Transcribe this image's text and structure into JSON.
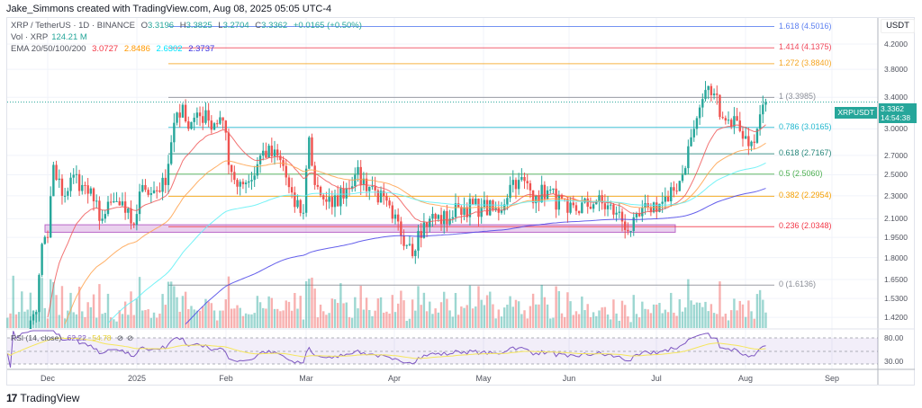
{
  "header": {
    "credit": "Jake_Simmons created with TradingView.com, Aug 08, 2025 05:05 UTC-4"
  },
  "legend": {
    "symbol": "XRP / TetherUS · 1D · BINANCE",
    "o_label": "O",
    "open": "3.3196",
    "h_label": "H",
    "high": "3.3825",
    "l_label": "L",
    "low": "3.2704",
    "c_label": "C",
    "close": "3.3362",
    "change": "+0.0165 (+0.50%)",
    "vol_label": "Vol · XRP",
    "vol_value": "124.21 M",
    "ema_label": "EMA 20/50/100/200",
    "ema20": "3.0727",
    "ema50": "2.8486",
    "ema100": "2.6302",
    "ema200": "2.3737",
    "rsi_label": "RSI (14, close)",
    "rsi_value": "62.22",
    "rsi_ma": "54.78"
  },
  "price_axis": {
    "currency": "USDT",
    "labels": [
      "4.2000",
      "3.8000",
      "3.4000",
      "3.0000",
      "2.7000",
      "2.5000",
      "2.3000",
      "2.1000",
      "1.9500",
      "1.8000",
      "1.6500",
      "1.5300",
      "1.4200"
    ],
    "rsi_labels": [
      "80.00",
      "30.00"
    ]
  },
  "price_tag": {
    "symbol": "XRPUSDT",
    "price": "3.3362",
    "countdown": "14:54:38"
  },
  "time_axis": [
    "Dec",
    "2025",
    "Feb",
    "Mar",
    "Apr",
    "May",
    "Jun",
    "Jul",
    "Aug",
    "Sep"
  ],
  "fib_levels": [
    {
      "label": "1.618 (4.5016)",
      "price": 4.5016,
      "color": "#5b7ff0"
    },
    {
      "label": "1.414 (4.1375)",
      "price": 4.1375,
      "color": "#f0475a"
    },
    {
      "label": "1.272 (3.8840)",
      "price": 3.884,
      "color": "#f5a623"
    },
    {
      "label": "1 (3.3985)",
      "price": 3.3985,
      "color": "#8a8d96"
    },
    {
      "label": "0.786 (3.0165)",
      "price": 3.0165,
      "color": "#22b8cf"
    },
    {
      "label": "0.618 (2.7167)",
      "price": 2.7167,
      "color": "#26867a"
    },
    {
      "label": "0.5 (2.5060)",
      "price": 2.506,
      "color": "#4caf50"
    },
    {
      "label": "0.382 (2.2954)",
      "price": 2.2954,
      "color": "#f59f00"
    },
    {
      "label": "0.236 (2.0348)",
      "price": 2.0348,
      "color": "#f23645"
    },
    {
      "label": "0 (1.6136)",
      "price": 1.6136,
      "color": "#8a8d96"
    }
  ],
  "footer": {
    "brand": "TradingView"
  },
  "chart_data": {
    "type": "candlestick",
    "symbol": "XRPUSDT",
    "scale": "log",
    "ylim": [
      1.42,
      4.55
    ],
    "support_zone": [
      1.99,
      2.05
    ],
    "colors": {
      "up": "#26a69a",
      "down": "#ef5350",
      "ema20": "#f05a5a",
      "ema50": "#ffa24c",
      "ema100": "#5ef0f5",
      "ema200": "#4a44e8",
      "rsi": "#7e57c2",
      "rsi_ma": "#f5e65b"
    },
    "ema_seed": {
      "ema20": 0.95,
      "ema50": 0.8,
      "ema100": 0.7,
      "ema200": 0.62
    },
    "close_anchors": [
      [
        "2024-11-17",
        1.1
      ],
      [
        "2024-11-27",
        1.45
      ],
      [
        "2024-11-29",
        1.9
      ],
      [
        "2024-12-01",
        1.95
      ],
      [
        "2024-12-03",
        2.6
      ],
      [
        "2024-12-04",
        2.45
      ],
      [
        "2024-12-07",
        2.3
      ],
      [
        "2024-12-10",
        2.5
      ],
      [
        "2024-12-13",
        2.4
      ],
      [
        "2024-12-17",
        2.25
      ],
      [
        "2024-12-20",
        2.1
      ],
      [
        "2024-12-24",
        2.25
      ],
      [
        "2024-12-28",
        2.15
      ],
      [
        "2024-12-31",
        2.05
      ],
      [
        "2025-01-03",
        2.4
      ],
      [
        "2025-01-07",
        2.35
      ],
      [
        "2025-01-11",
        2.4
      ],
      [
        "2025-01-15",
        3.2
      ],
      [
        "2025-01-17",
        3.3
      ],
      [
        "2025-01-19",
        3.0
      ],
      [
        "2025-01-22",
        3.2
      ],
      [
        "2025-01-26",
        3.1
      ],
      [
        "2025-01-31",
        3.1
      ],
      [
        "2025-02-02",
        2.6
      ],
      [
        "2025-02-04",
        2.45
      ],
      [
        "2025-02-10",
        2.45
      ],
      [
        "2025-02-14",
        2.75
      ],
      [
        "2025-02-20",
        2.65
      ],
      [
        "2025-02-25",
        2.2
      ],
      [
        "2025-02-28",
        2.15
      ],
      [
        "2025-03-02",
        2.9
      ],
      [
        "2025-03-04",
        2.4
      ],
      [
        "2025-03-10",
        2.2
      ],
      [
        "2025-03-18",
        2.5
      ],
      [
        "2025-03-25",
        2.35
      ],
      [
        "2025-03-31",
        2.1
      ],
      [
        "2025-04-06",
        1.9
      ],
      [
        "2025-04-08",
        1.85
      ],
      [
        "2025-04-09",
        2.0
      ],
      [
        "2025-04-13",
        2.1
      ],
      [
        "2025-04-20",
        2.1
      ],
      [
        "2025-04-23",
        2.2
      ],
      [
        "2025-05-01",
        2.2
      ],
      [
        "2025-05-07",
        2.15
      ],
      [
        "2025-05-12",
        2.45
      ],
      [
        "2025-05-14",
        2.45
      ],
      [
        "2025-05-20",
        2.3
      ],
      [
        "2025-05-24",
        2.35
      ],
      [
        "2025-05-31",
        2.15
      ],
      [
        "2025-06-10",
        2.25
      ],
      [
        "2025-06-17",
        2.15
      ],
      [
        "2025-06-22",
        2.0
      ],
      [
        "2025-06-28",
        2.2
      ],
      [
        "2025-07-05",
        2.25
      ],
      [
        "2025-07-10",
        2.5
      ],
      [
        "2025-07-13",
        2.9
      ],
      [
        "2025-07-14",
        3.0
      ],
      [
        "2025-07-18",
        3.5
      ],
      [
        "2025-07-21",
        3.45
      ],
      [
        "2025-07-25",
        3.1
      ],
      [
        "2025-07-29",
        3.1
      ],
      [
        "2025-08-02",
        2.8
      ],
      [
        "2025-08-05",
        3.0
      ],
      [
        "2025-08-08",
        3.3362
      ]
    ]
  }
}
